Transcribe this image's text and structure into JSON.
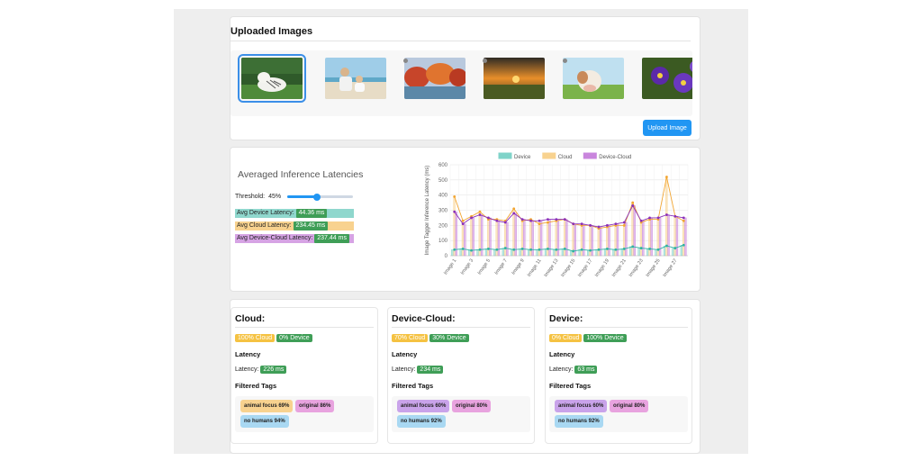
{
  "upload": {
    "title": "Uploaded Images",
    "button_label": "Upload Image",
    "thumbnails": [
      {
        "subject": "white tiger on grass",
        "selected": true
      },
      {
        "subject": "woman with baby on beach",
        "selected": false
      },
      {
        "subject": "autumn trees by lake",
        "selected": false
      },
      {
        "subject": "sunset over field",
        "selected": false
      },
      {
        "subject": "cow in meadow",
        "selected": false
      },
      {
        "subject": "purple pansies",
        "selected": false
      }
    ]
  },
  "latency": {
    "title": "Averaged Inference Latencies",
    "threshold_label": "Threshold:",
    "threshold_value": "45%",
    "threshold_fraction": 0.45,
    "avg_device_label": "Avg Device Latency:",
    "avg_device_value": "44.36 ms",
    "avg_cloud_label": "Avg Cloud Latency:",
    "avg_cloud_value": "234.45 ms",
    "avg_devicecloud_label": "Avg Device-Cloud Latency:",
    "avg_devicecloud_value": "237.44 ms"
  },
  "colors": {
    "device": "#7fd3c9",
    "cloud": "#f8d28f",
    "devicecloud": "#c985dd",
    "accent": "#2196f3",
    "green": "#3f9e57",
    "orange_chip": "#f5c242"
  },
  "chart_data": {
    "type": "bar",
    "ylabel": "Image Tagger Inference Latency (ms)",
    "ylim": [
      0,
      600
    ],
    "yticks": [
      0,
      100,
      200,
      300,
      400,
      500,
      600
    ],
    "legend_position": "top",
    "x_tick_labels": [
      "Image 1",
      "Image 3",
      "Image 5",
      "Image 7",
      "Image 9",
      "Image 11",
      "Image 13",
      "Image 15",
      "Image 17",
      "Image 19",
      "Image 21",
      "Image 23",
      "Image 25",
      "Image 27"
    ],
    "categories": [
      "Image 1",
      "Image 2",
      "Image 3",
      "Image 4",
      "Image 5",
      "Image 6",
      "Image 7",
      "Image 8",
      "Image 9",
      "Image 10",
      "Image 11",
      "Image 12",
      "Image 13",
      "Image 14",
      "Image 15",
      "Image 16",
      "Image 17",
      "Image 18",
      "Image 19",
      "Image 20",
      "Image 21",
      "Image 22",
      "Image 23",
      "Image 24",
      "Image 25",
      "Image 26",
      "Image 27",
      "Image 28"
    ],
    "series": [
      {
        "name": "Device",
        "color": "#7fd3c9",
        "values": [
          40,
          45,
          35,
          40,
          45,
          40,
          50,
          40,
          45,
          40,
          40,
          45,
          40,
          45,
          30,
          40,
          35,
          40,
          45,
          40,
          45,
          60,
          50,
          45,
          40,
          65,
          50,
          70
        ]
      },
      {
        "name": "Cloud",
        "color": "#f8d28f",
        "values": [
          390,
          230,
          260,
          290,
          240,
          240,
          230,
          310,
          230,
          240,
          210,
          220,
          230,
          240,
          210,
          200,
          200,
          180,
          190,
          200,
          200,
          350,
          220,
          240,
          240,
          520,
          260,
          230
        ]
      },
      {
        "name": "Device-Cloud",
        "color": "#c985dd",
        "values": [
          290,
          210,
          250,
          270,
          250,
          230,
          220,
          280,
          240,
          230,
          230,
          240,
          240,
          240,
          210,
          210,
          200,
          190,
          200,
          210,
          220,
          330,
          230,
          250,
          250,
          270,
          260,
          250
        ]
      }
    ]
  },
  "results": [
    {
      "title": "Cloud:",
      "cloud_chip": "100% Cloud",
      "device_chip": "0% Device",
      "latency_heading": "Latency",
      "latency_label": "Latency:",
      "latency_value": "226 ms",
      "tags_heading": "Filtered Tags",
      "tags": [
        {
          "text": "animal focus 69%",
          "color": "#f8d28f"
        },
        {
          "text": "original 86%",
          "color": "#e8a3df"
        },
        {
          "text": "no humans 94%",
          "color": "#a9d8f2"
        }
      ]
    },
    {
      "title": "Device-Cloud:",
      "cloud_chip": "70% Cloud",
      "device_chip": "30% Device",
      "latency_heading": "Latency",
      "latency_label": "Latency:",
      "latency_value": "234 ms",
      "tags_heading": "Filtered Tags",
      "tags": [
        {
          "text": "animal focus 60%",
          "color": "#c9a3ea"
        },
        {
          "text": "original 80%",
          "color": "#e8a3df"
        },
        {
          "text": "no humans 92%",
          "color": "#a9d8f2"
        }
      ]
    },
    {
      "title": "Device:",
      "cloud_chip": "0% Cloud",
      "device_chip": "100% Device",
      "latency_heading": "Latency",
      "latency_label": "Latency:",
      "latency_value": "63 ms",
      "tags_heading": "Filtered Tags",
      "tags": [
        {
          "text": "animal focus 60%",
          "color": "#c9a3ea"
        },
        {
          "text": "original 80%",
          "color": "#e8a3df"
        },
        {
          "text": "no humans 92%",
          "color": "#a9d8f2"
        }
      ]
    }
  ]
}
